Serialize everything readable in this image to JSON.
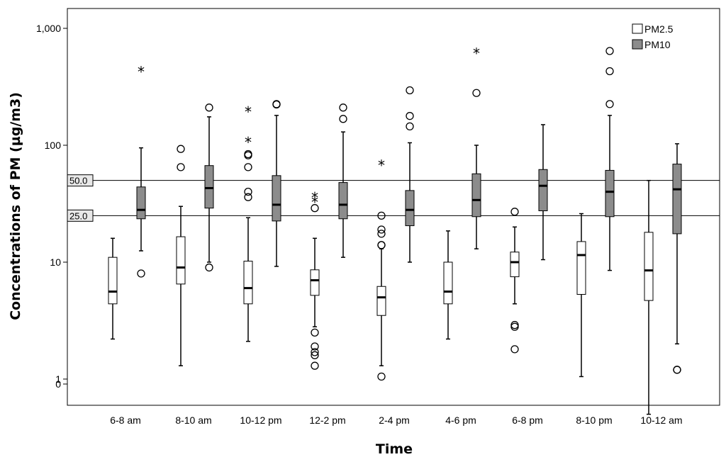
{
  "chart_data": {
    "type": "boxplot",
    "xlabel": "Time",
    "ylabel": "Concentrations of PM (µg/m3)",
    "y_scale": "log",
    "y_ticks": [
      {
        "value": 1000,
        "label": "1,000"
      },
      {
        "value": 100,
        "label": "100"
      },
      {
        "value": 10,
        "label": "10"
      },
      {
        "value": 1,
        "label": "1"
      },
      {
        "value": 0,
        "label": "0"
      }
    ],
    "reference_lines": [
      {
        "value": 50,
        "label": "50.0"
      },
      {
        "value": 25,
        "label": "25.0"
      }
    ],
    "legend_position": "top-right",
    "colors": {
      "PM2.5": "#ffffff",
      "PM10": "#8c8c8c"
    },
    "categories": [
      "6-8 am",
      "8-10 am",
      "10-12 pm",
      "12-2 pm",
      "2-4 pm",
      "4-6 pm",
      "6-8 pm",
      "8-10 pm",
      "10-12 am"
    ],
    "series": [
      {
        "name": "PM2.5",
        "boxes": [
          {
            "min": 2.2,
            "q1": 4.4,
            "median": 5.6,
            "q3": 11,
            "max": 16,
            "outliers": [],
            "extremes": []
          },
          {
            "min": 1.3,
            "q1": 6.5,
            "median": 9,
            "q3": 16.5,
            "max": 30,
            "outliers": [
              93,
              65
            ],
            "extremes": []
          },
          {
            "min": 2.1,
            "q1": 4.4,
            "median": 6,
            "q3": 10.2,
            "max": 24,
            "outliers": [
              84,
              82,
              65,
              40,
              36
            ],
            "extremes": [
              195,
              107
            ]
          },
          {
            "min": 2.8,
            "q1": 5.2,
            "median": 7,
            "q3": 8.6,
            "max": 16,
            "outliers": [
              29,
              2.5,
              1.9,
              1.7,
              1.6,
              1.3
            ],
            "extremes": [
              33,
              36
            ]
          },
          {
            "min": 1.3,
            "q1": 3.5,
            "median": 5,
            "q3": 6.2,
            "max": 13,
            "outliers": [
              25,
              19,
              17.5,
              14,
              14,
              1.05
            ],
            "extremes": [
              68
            ]
          },
          {
            "min": 2.2,
            "q1": 4.4,
            "median": 5.6,
            "q3": 10,
            "max": 18.5,
            "outliers": [],
            "extremes": []
          },
          {
            "min": 4.4,
            "q1": 7.5,
            "median": 10,
            "q3": 12.2,
            "max": 20,
            "outliers": [
              27,
              2.9,
              2.8,
              1.8
            ],
            "extremes": []
          },
          {
            "min": 1.05,
            "q1": 5.3,
            "median": 11.5,
            "q3": 15,
            "max": 26,
            "outliers": [],
            "extremes": []
          },
          {
            "min": 0.5,
            "q1": 4.7,
            "median": 8.5,
            "q3": 18,
            "max": 50,
            "outliers": [],
            "extremes": []
          }
        ]
      },
      {
        "name": "PM10",
        "boxes": [
          {
            "min": 12.5,
            "q1": 23.5,
            "median": 28,
            "q3": 44,
            "max": 95,
            "outliers": [
              8
            ],
            "extremes": [
              430
            ]
          },
          {
            "min": 10,
            "q1": 29,
            "median": 43,
            "q3": 67,
            "max": 175,
            "outliers": [
              210,
              9
            ],
            "extremes": []
          },
          {
            "min": 9.2,
            "q1": 22.5,
            "median": 31,
            "q3": 55,
            "max": 180,
            "outliers": [
              225,
              223
            ],
            "extremes": []
          },
          {
            "min": 11,
            "q1": 23.5,
            "median": 31,
            "q3": 48,
            "max": 130,
            "outliers": [
              210,
              168
            ],
            "extremes": []
          },
          {
            "min": 10,
            "q1": 20.5,
            "median": 28,
            "q3": 41,
            "max": 105,
            "outliers": [
              295,
              178,
              145
            ],
            "extremes": []
          },
          {
            "min": 13,
            "q1": 24.5,
            "median": 34,
            "q3": 57,
            "max": 100,
            "outliers": [
              280
            ],
            "extremes": [
              620
            ]
          },
          {
            "min": 10.5,
            "q1": 27.5,
            "median": 45,
            "q3": 62,
            "max": 150,
            "outliers": [],
            "extremes": []
          },
          {
            "min": 8.5,
            "q1": 24.5,
            "median": 40,
            "q3": 61,
            "max": 180,
            "outliers": [
              640,
              430,
              225
            ],
            "extremes": []
          },
          {
            "min": 2,
            "q1": 17.5,
            "median": 42,
            "q3": 69,
            "max": 103,
            "outliers": [
              1.2,
              1.2
            ],
            "extremes": []
          }
        ]
      }
    ]
  }
}
